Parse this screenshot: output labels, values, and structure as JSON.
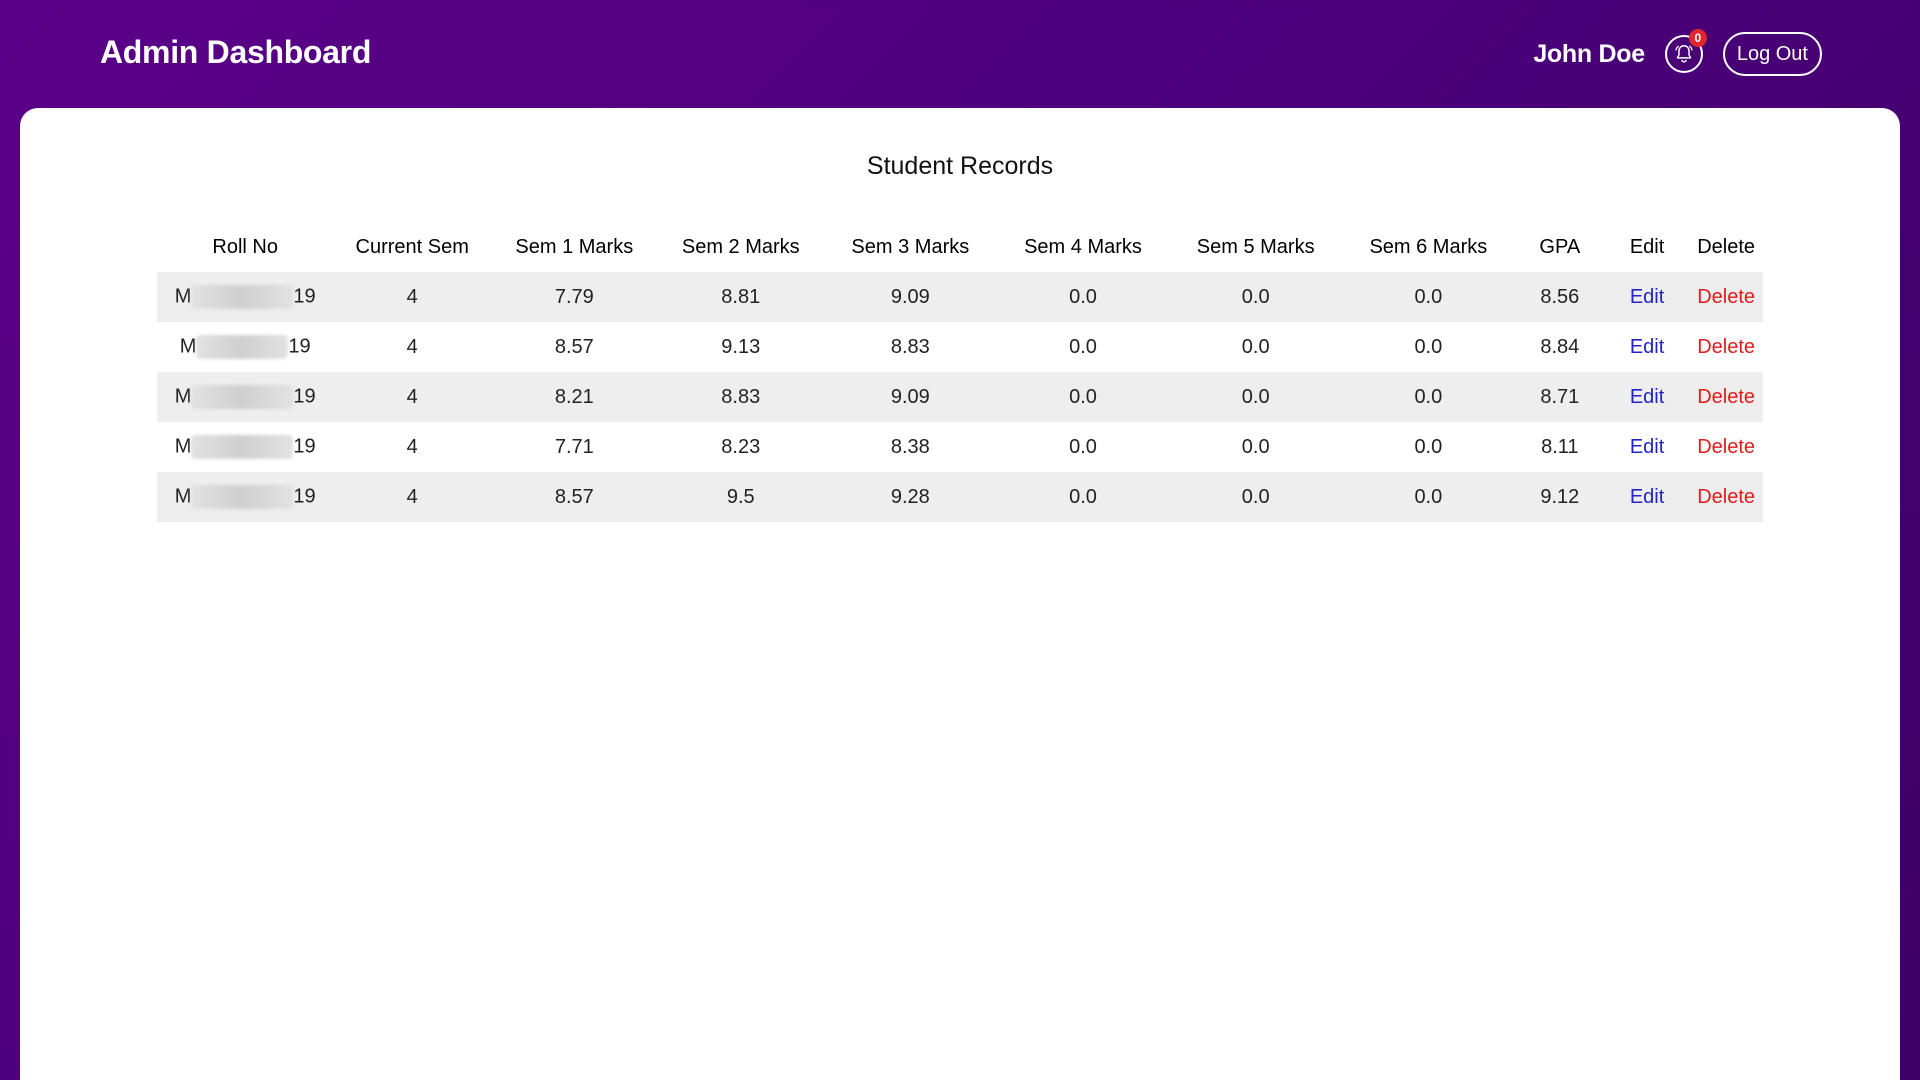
{
  "header": {
    "title": "Admin Dashboard",
    "user_name": "John Doe",
    "notification_count": "0",
    "logout_label": "Log Out"
  },
  "main": {
    "title": "Student Records",
    "columns": [
      "Roll No",
      "Current Sem",
      "Sem 1 Marks",
      "Sem 2 Marks",
      "Sem 3 Marks",
      "Sem 4 Marks",
      "Sem 5 Marks",
      "Sem 6 Marks",
      "GPA",
      "Edit",
      "Delete"
    ],
    "rows": [
      {
        "roll_prefix": "M",
        "roll_suffix": "19",
        "current_sem": "4",
        "sem1": "7.79",
        "sem2": "8.81",
        "sem3": "9.09",
        "sem4": "0.0",
        "sem5": "0.0",
        "sem6": "0.0",
        "gpa": "8.56",
        "edit": "Edit",
        "delete": "Delete"
      },
      {
        "roll_prefix": "M",
        "roll_suffix": "19",
        "current_sem": "4",
        "sem1": "8.57",
        "sem2": "9.13",
        "sem3": "8.83",
        "sem4": "0.0",
        "sem5": "0.0",
        "sem6": "0.0",
        "gpa": "8.84",
        "edit": "Edit",
        "delete": "Delete"
      },
      {
        "roll_prefix": "M",
        "roll_suffix": "19",
        "current_sem": "4",
        "sem1": "8.21",
        "sem2": "8.83",
        "sem3": "9.09",
        "sem4": "0.0",
        "sem5": "0.0",
        "sem6": "0.0",
        "gpa": "8.71",
        "edit": "Edit",
        "delete": "Delete"
      },
      {
        "roll_prefix": "M",
        "roll_suffix": "19",
        "current_sem": "4",
        "sem1": "7.71",
        "sem2": "8.23",
        "sem3": "8.38",
        "sem4": "0.0",
        "sem5": "0.0",
        "sem6": "0.0",
        "gpa": "8.11",
        "edit": "Edit",
        "delete": "Delete"
      },
      {
        "roll_prefix": "M",
        "roll_suffix": "19",
        "current_sem": "4",
        "sem1": "8.57",
        "sem2": "9.5",
        "sem3": "9.28",
        "sem4": "0.0",
        "sem5": "0.0",
        "sem6": "0.0",
        "gpa": "9.12",
        "edit": "Edit",
        "delete": "Delete"
      }
    ]
  },
  "colors": {
    "header_bg": "#4b0079",
    "edit_link": "#2323c8",
    "delete_link": "#e01d1d",
    "badge": "#e3262d"
  },
  "icons": {
    "notifications": "bell-icon"
  }
}
